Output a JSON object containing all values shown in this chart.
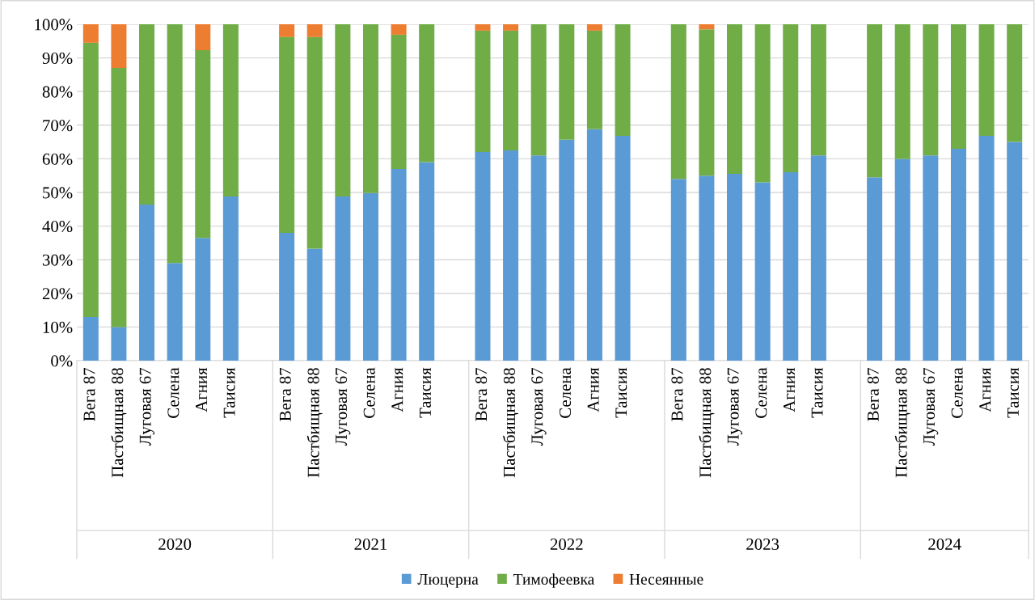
{
  "chart_data": {
    "type": "bar",
    "stacked": true,
    "categories": [
      "Вега 87",
      "Пастбищная 88",
      "Луговая 67",
      "Селена",
      "Агния",
      "Таисия",
      null,
      "Вега 87",
      "Пастбищная 88",
      "Луговая 67",
      "Селена",
      "Агния",
      "Таисия",
      null,
      "Вега 87",
      "Пастбищная 88",
      "Луговая 67",
      "Селена",
      "Агния",
      "Таисия",
      null,
      "Вега 87",
      "Пастбищная 88",
      "Луговая 67",
      "Селена",
      "Агния",
      "Таисия",
      null,
      "Вега 87",
      "Пастбищная 88",
      "Луговая 67",
      "Селена",
      "Агния",
      "Таисия"
    ],
    "series": [
      {
        "name": "Люцерна",
        "color": "#5b9bd5",
        "values": [
          13,
          10,
          46.4,
          29,
          36.5,
          48.8,
          null,
          38,
          33.3,
          48.8,
          49.8,
          57,
          59,
          null,
          62,
          62.5,
          61,
          65.7,
          68.8,
          66.8,
          null,
          54,
          55,
          55.5,
          53,
          56,
          61,
          null,
          54.5,
          60,
          61,
          63,
          66.8,
          65
        ]
      },
      {
        "name": "Тимофеевка",
        "color": "#70ad47",
        "values": [
          81.5,
          77,
          53.6,
          71,
          55.8,
          51.2,
          null,
          58.2,
          62.9,
          51.2,
          50.2,
          39.9,
          41,
          null,
          36.1,
          35.6,
          39,
          34.3,
          29.3,
          33.2,
          null,
          46,
          43.5,
          44.5,
          47,
          44,
          39,
          null,
          45.5,
          40,
          39,
          37,
          33.2,
          35
        ]
      },
      {
        "name": "Несеянные",
        "color": "#ed7d31",
        "values": [
          5.5,
          13,
          0,
          0,
          7.7,
          0,
          null,
          3.8,
          3.8,
          0,
          0,
          3.1,
          0,
          null,
          1.9,
          1.9,
          0,
          0,
          1.9,
          0,
          null,
          0,
          1.5,
          0,
          0,
          0,
          0,
          null,
          0,
          0,
          0,
          0,
          0,
          0
        ]
      }
    ],
    "ylim": [
      0,
      100
    ],
    "yticks": [
      {
        "value": 0,
        "label": "0%"
      },
      {
        "value": 10,
        "label": "10%"
      },
      {
        "value": 20,
        "label": "20%"
      },
      {
        "value": 30,
        "label": "30%"
      },
      {
        "value": 40,
        "label": "40%"
      },
      {
        "value": 50,
        "label": "50%"
      },
      {
        "value": 60,
        "label": "60%"
      },
      {
        "value": 70,
        "label": "70%"
      },
      {
        "value": 80,
        "label": "80%"
      },
      {
        "value": 90,
        "label": "90%"
      },
      {
        "value": 100,
        "label": "100%"
      }
    ],
    "grid": "y",
    "legend": "bottom",
    "annotations": [
      "2020",
      "2021",
      "2022",
      "2023",
      "2024"
    ]
  }
}
